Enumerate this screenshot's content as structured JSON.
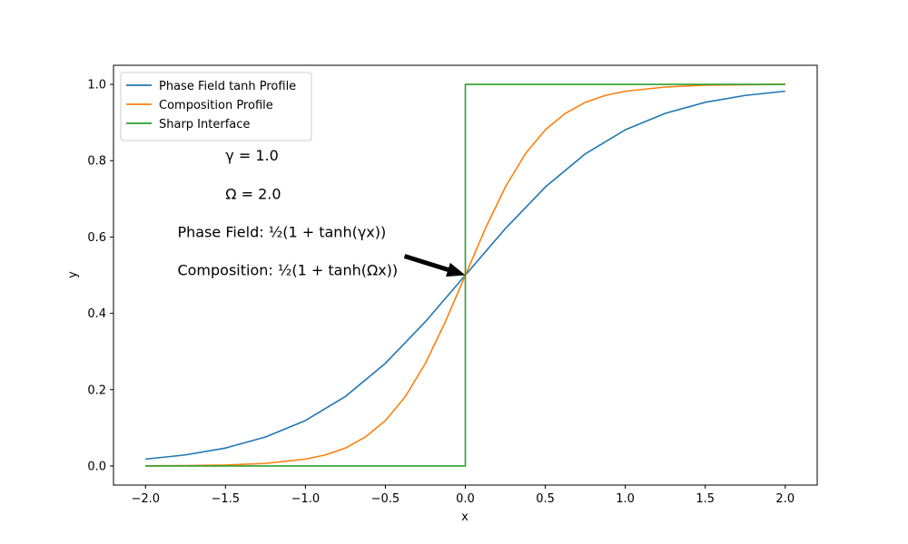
{
  "chart_data": {
    "type": "line",
    "xlabel": "x",
    "ylabel": "y",
    "xlim": [
      -2.2,
      2.2
    ],
    "ylim": [
      -0.05,
      1.05
    ],
    "xticks": [
      -2.0,
      -1.5,
      -1.0,
      -0.5,
      0.0,
      0.5,
      1.0,
      1.5,
      2.0
    ],
    "xtick_labels": [
      "−2.0",
      "−1.5",
      "−1.0",
      "−0.5",
      "0.0",
      "0.5",
      "1.0",
      "1.5",
      "2.0"
    ],
    "yticks": [
      0.0,
      0.2,
      0.4,
      0.6,
      0.8,
      1.0
    ],
    "ytick_labels": [
      "0.0",
      "0.2",
      "0.4",
      "0.6",
      "0.8",
      "1.0"
    ],
    "grid": false,
    "legend_position": "top-left",
    "series": [
      {
        "name": "Phase Field tanh Profile",
        "color": "#1f77b4",
        "x": [
          -2.0,
          -1.75,
          -1.5,
          -1.25,
          -1.0,
          -0.75,
          -0.5,
          -0.25,
          0.0,
          0.25,
          0.5,
          0.75,
          1.0,
          1.25,
          1.5,
          1.75,
          2.0
        ],
        "y": [
          0.018,
          0.029,
          0.047,
          0.076,
          0.119,
          0.182,
          0.269,
          0.378,
          0.5,
          0.622,
          0.731,
          0.818,
          0.881,
          0.924,
          0.953,
          0.971,
          0.982
        ]
      },
      {
        "name": "Composition Profile",
        "color": "#ff7f0e",
        "x": [
          -2.0,
          -1.75,
          -1.5,
          -1.25,
          -1.0,
          -0.875,
          -0.75,
          -0.625,
          -0.5,
          -0.375,
          -0.25,
          -0.125,
          0.0,
          0.125,
          0.25,
          0.375,
          0.5,
          0.625,
          0.75,
          0.875,
          1.0,
          1.25,
          1.5,
          1.75,
          2.0
        ],
        "y": [
          0.0003,
          0.0009,
          0.0025,
          0.0067,
          0.018,
          0.029,
          0.047,
          0.076,
          0.119,
          0.182,
          0.269,
          0.378,
          0.5,
          0.622,
          0.731,
          0.818,
          0.881,
          0.924,
          0.953,
          0.971,
          0.982,
          0.993,
          0.998,
          0.999,
          1.0
        ]
      },
      {
        "name": "Sharp Interface",
        "color": "#2ca02c",
        "x": [
          -2.0,
          0.0,
          0.0,
          2.0
        ],
        "y": [
          0.0,
          0.0,
          1.0,
          1.0
        ]
      }
    ],
    "annotations": [
      {
        "text": "γ = 1.0",
        "x": -1.5,
        "y": 0.8
      },
      {
        "text": "Ω = 2.0",
        "x": -1.5,
        "y": 0.7
      },
      {
        "text": "Phase Field: ½(1 + tanh(γx))",
        "x": -1.8,
        "y": 0.6
      },
      {
        "text": "Composition: ½(1 + tanh(Ωx))",
        "x": -1.8,
        "y": 0.5
      }
    ],
    "arrow": {
      "from": [
        -0.38,
        0.55
      ],
      "to": [
        0.0,
        0.5
      ]
    }
  }
}
